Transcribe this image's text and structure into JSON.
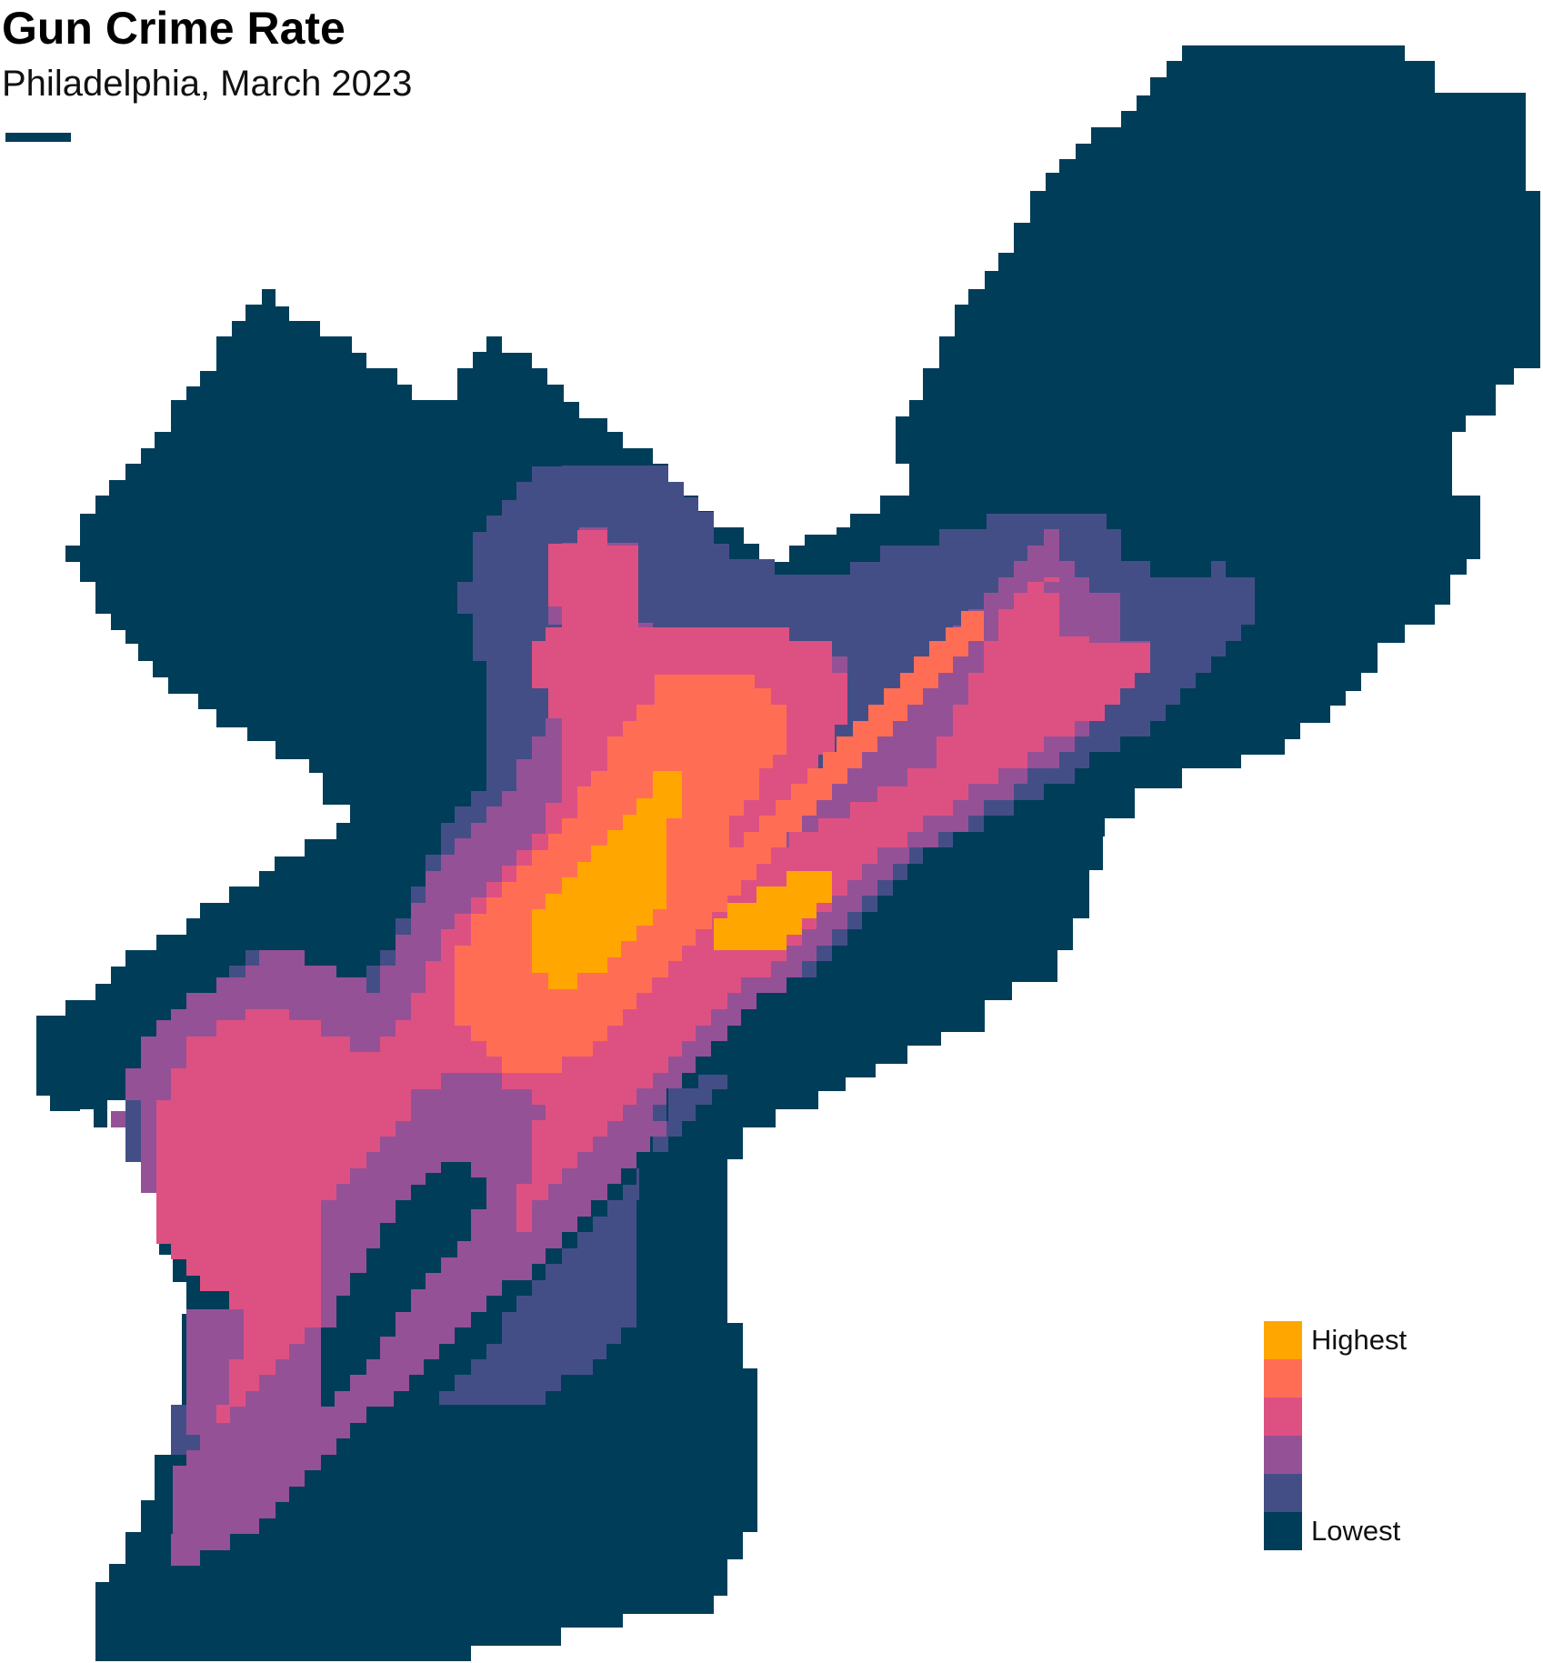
{
  "header": {
    "title": "Gun Crime Rate",
    "subtitle": "Philadelphia, March 2023",
    "accent_color": "#003d59"
  },
  "legend": {
    "high_label": "Highest",
    "low_label": "Lowest",
    "levels": [
      {
        "color": "#ffa600"
      },
      {
        "color": "#ff6e54"
      },
      {
        "color": "#dd5182"
      },
      {
        "color": "#955196"
      },
      {
        "color": "#444e86"
      },
      {
        "color": "#003d59"
      }
    ]
  },
  "map": {
    "outline_color": "#003d59",
    "zone_colors": [
      "#444e86",
      "#955196",
      "#dd5182",
      "#ff6e54",
      "#ffa600"
    ]
  }
}
